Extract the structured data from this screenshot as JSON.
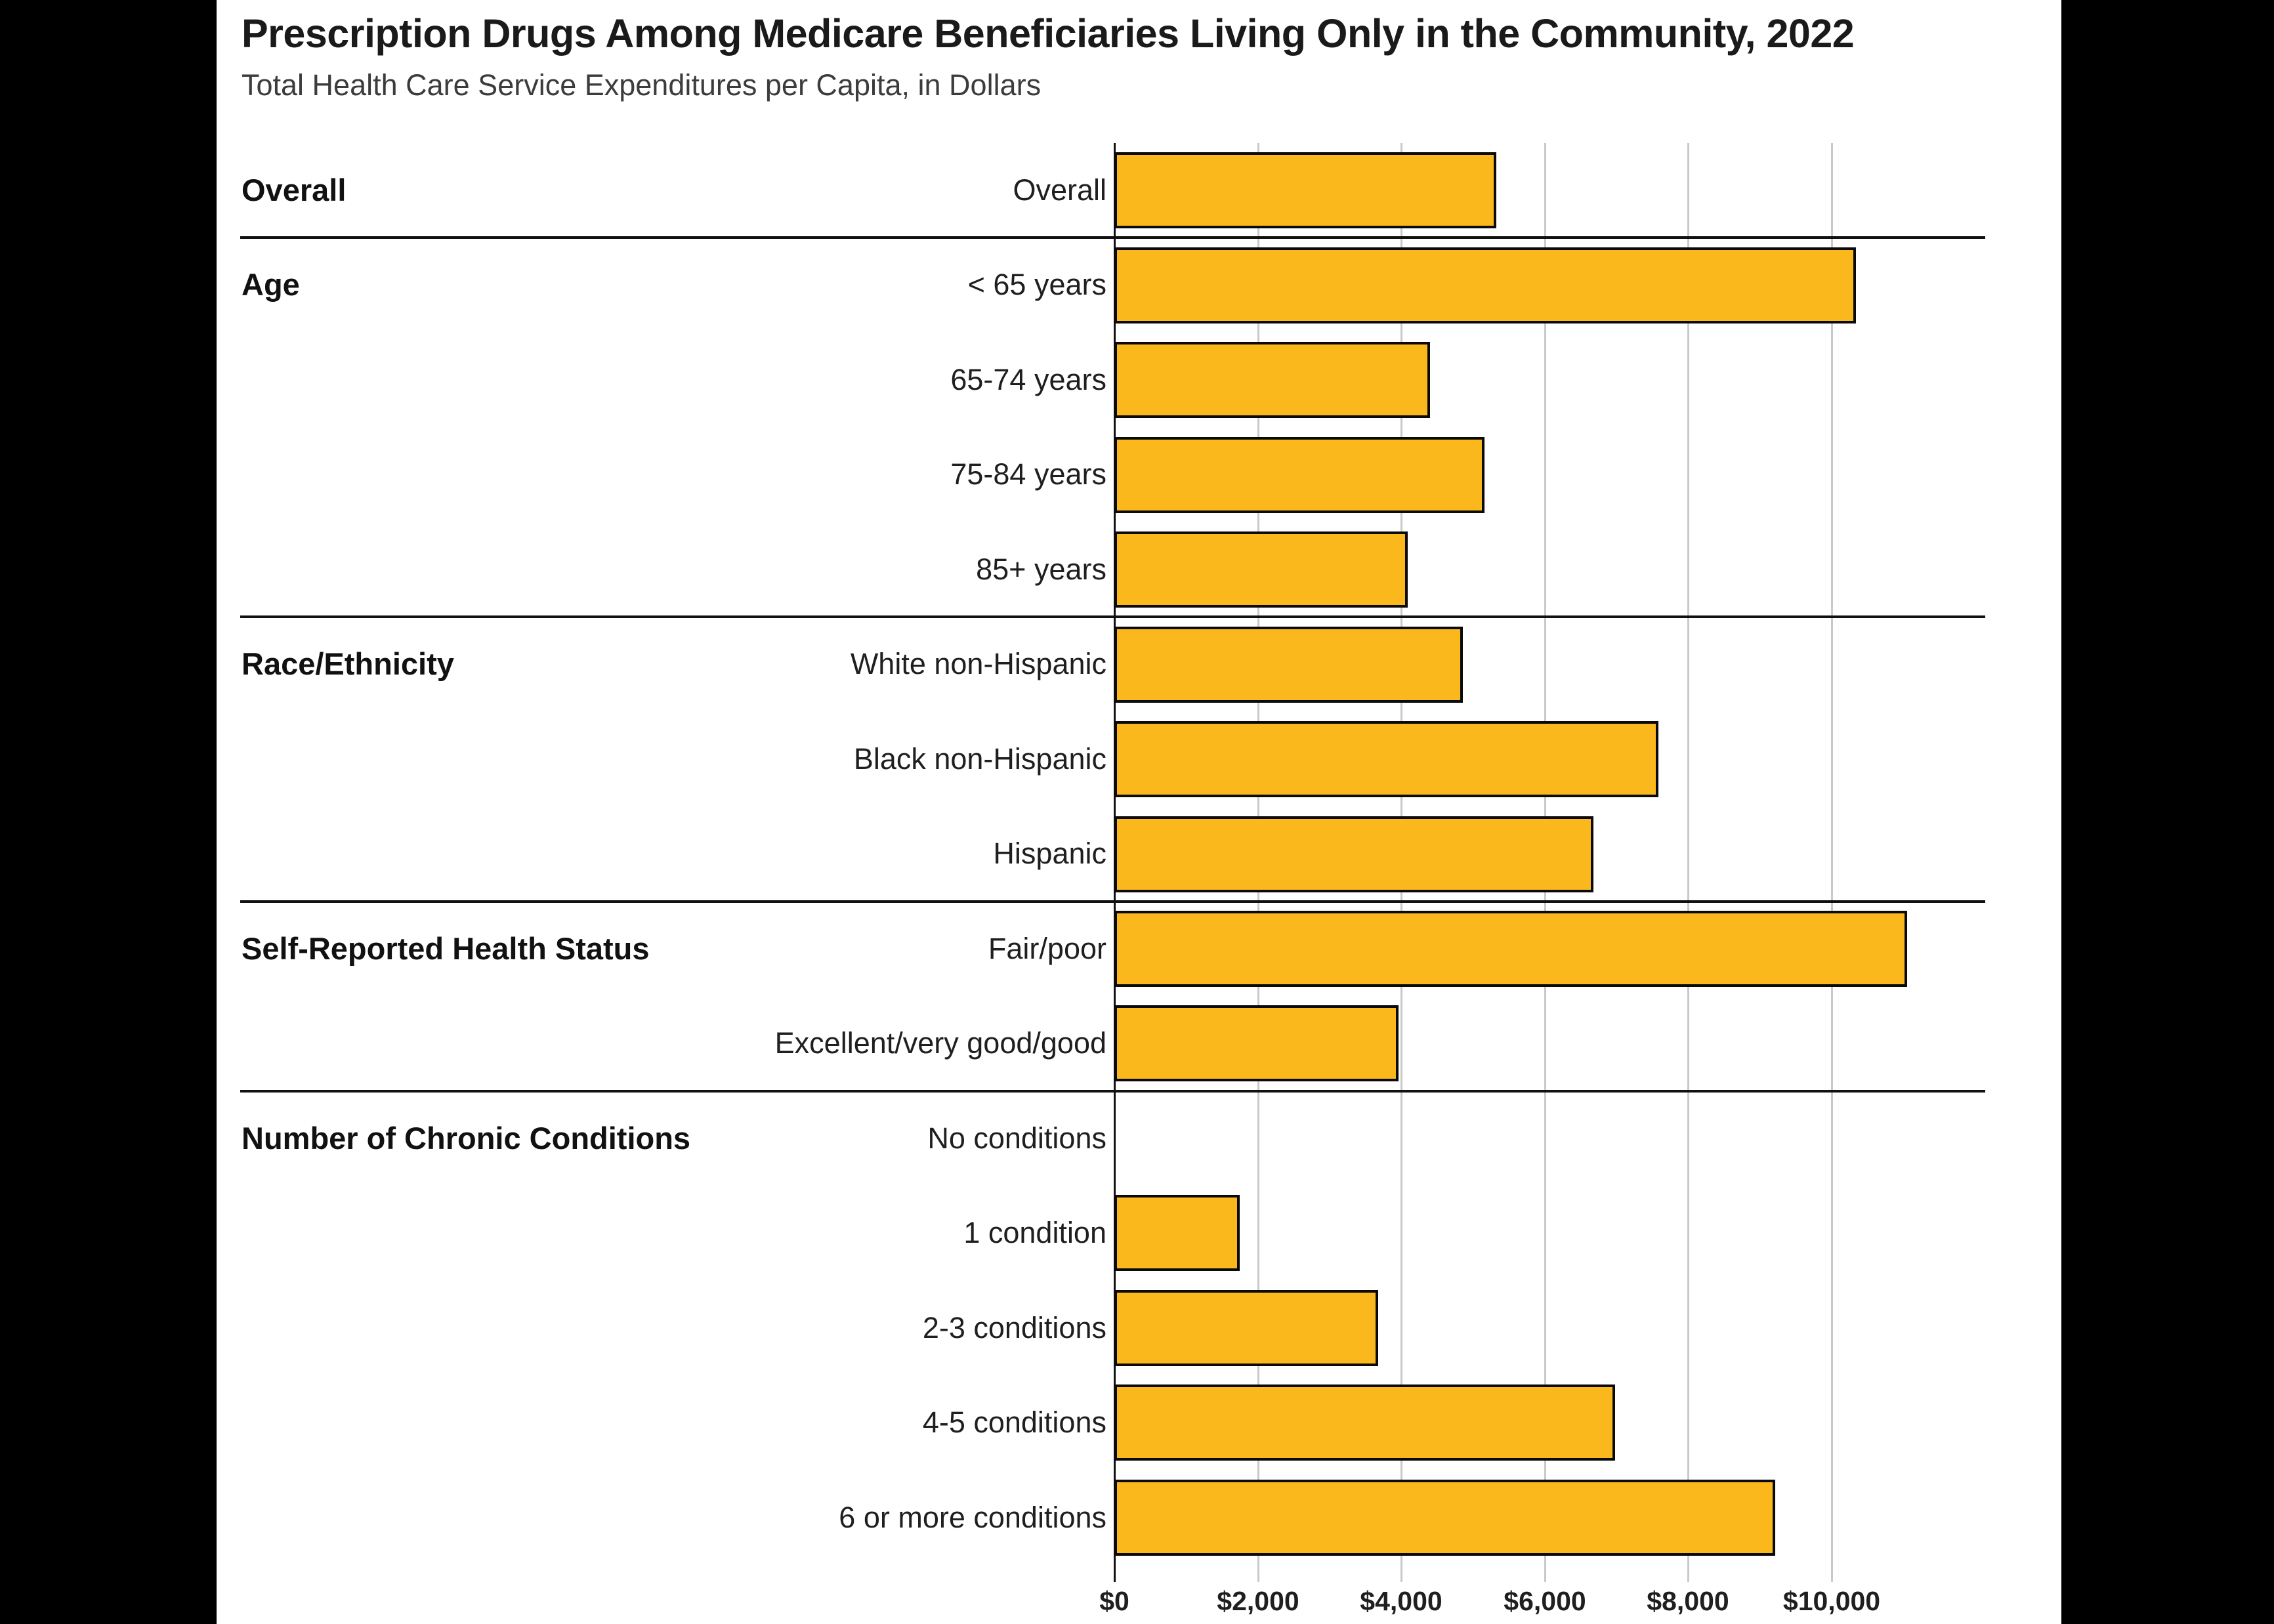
{
  "header": {
    "title": "Prescription Drugs Among Medicare Beneficiaries Living Only in the Community, 2022",
    "subtitle": "Total Health Care Service Expenditures per Capita, in Dollars"
  },
  "chart_data": {
    "type": "bar",
    "orientation": "horizontal",
    "title": "Prescription Drugs Among Medicare Beneficiaries Living Only in the Community, 2022",
    "subtitle": "Total Health Care Service Expenditures per Capita, in Dollars",
    "unit": "dollars per capita",
    "xlim": [
      0,
      12146
    ],
    "xticks": [
      {
        "value": 0,
        "label": "$0"
      },
      {
        "value": 2000,
        "label": "$2,000"
      },
      {
        "value": 4000,
        "label": "$4,000"
      },
      {
        "value": 6000,
        "label": "$6,000"
      },
      {
        "value": 8000,
        "label": "$8,000"
      },
      {
        "value": 10000,
        "label": "$10,000"
      }
    ],
    "grid": "vertical",
    "legend": "none",
    "bar_color": "#FBB81C",
    "bar_border_color": "#0a0a0a",
    "gridline_color": "#c9c9c9",
    "sections": [
      {
        "label": "Overall",
        "rows": [
          {
            "label": "Overall",
            "value": 5330
          }
        ]
      },
      {
        "label": "Age",
        "rows": [
          {
            "label": "< 65 years",
            "value": 10340
          },
          {
            "label": "65-74 years",
            "value": 4400
          },
          {
            "label": "75-84 years",
            "value": 5160
          },
          {
            "label": "85+ years",
            "value": 4090
          }
        ]
      },
      {
        "label": "Race/Ethnicity",
        "rows": [
          {
            "label": "White non-Hispanic",
            "value": 4860
          },
          {
            "label": "Black non-Hispanic",
            "value": 7590
          },
          {
            "label": "Hispanic",
            "value": 6680
          }
        ]
      },
      {
        "label": "Self-Reported Health Status",
        "rows": [
          {
            "label": "Fair/poor",
            "value": 11060
          },
          {
            "label": "Excellent/very good/good",
            "value": 3960
          }
        ]
      },
      {
        "label": "Number of Chronic Conditions",
        "rows": [
          {
            "label": "No conditions",
            "value": 0
          },
          {
            "label": "1 condition",
            "value": 1750
          },
          {
            "label": "2-3 conditions",
            "value": 3680
          },
          {
            "label": "4-5 conditions",
            "value": 6980
          },
          {
            "label": "6 or more conditions",
            "value": 9220
          }
        ]
      }
    ]
  }
}
